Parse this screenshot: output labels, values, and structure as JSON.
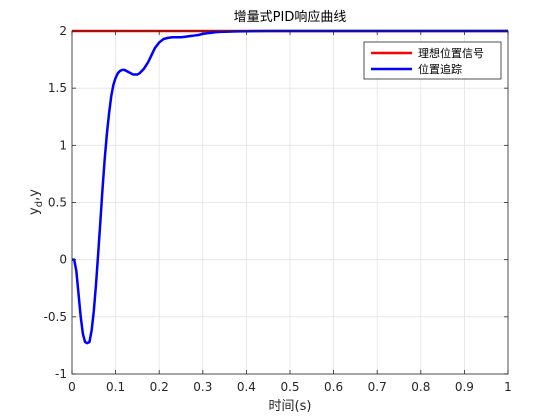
{
  "chart_data": {
    "type": "line",
    "title": "增量式PID响应曲线",
    "xlabel": "时间(s)",
    "ylabel_main": "y",
    "ylabel_sub": "d",
    "ylabel_tail": ",y",
    "xlim": [
      0,
      1
    ],
    "ylim": [
      -1,
      2
    ],
    "xticks": [
      0,
      0.1,
      0.2,
      0.3,
      0.4,
      0.5,
      0.6,
      0.7,
      0.8,
      0.9,
      1
    ],
    "xtick_labels": [
      "0",
      "0.1",
      "0.2",
      "0.3",
      "0.4",
      "0.5",
      "0.6",
      "0.7",
      "0.8",
      "0.9",
      "1"
    ],
    "yticks": [
      -1,
      -0.5,
      0,
      0.5,
      1,
      1.5,
      2
    ],
    "ytick_labels": [
      "-1",
      "-0.5",
      "0",
      "0.5",
      "1",
      "1.5",
      "2"
    ],
    "grid": true,
    "legend_position": "top-right",
    "series": [
      {
        "name": "理想位置信号",
        "color": "#ff0000",
        "x": [
          0,
          1
        ],
        "y": [
          2,
          2
        ]
      },
      {
        "name": "位置追踪",
        "color": "#0000ff",
        "x": [
          0,
          0.005,
          0.01,
          0.015,
          0.02,
          0.025,
          0.03,
          0.035,
          0.04,
          0.045,
          0.05,
          0.055,
          0.06,
          0.065,
          0.07,
          0.075,
          0.08,
          0.085,
          0.09,
          0.095,
          0.1,
          0.105,
          0.11,
          0.115,
          0.12,
          0.125,
          0.13,
          0.135,
          0.14,
          0.145,
          0.15,
          0.155,
          0.16,
          0.165,
          0.17,
          0.175,
          0.18,
          0.185,
          0.19,
          0.2,
          0.21,
          0.22,
          0.23,
          0.24,
          0.25,
          0.26,
          0.27,
          0.28,
          0.29,
          0.3,
          0.31,
          0.32,
          0.33,
          0.34,
          0.35,
          0.36,
          0.38,
          0.4,
          0.42,
          0.45,
          0.5,
          0.55,
          0.6,
          0.7,
          0.8,
          0.9,
          1
        ],
        "y": [
          0,
          0,
          -0.1,
          -0.3,
          -0.5,
          -0.65,
          -0.72,
          -0.73,
          -0.72,
          -0.62,
          -0.45,
          -0.22,
          0.05,
          0.33,
          0.62,
          0.88,
          1.1,
          1.28,
          1.43,
          1.53,
          1.59,
          1.63,
          1.65,
          1.66,
          1.66,
          1.65,
          1.64,
          1.63,
          1.62,
          1.62,
          1.62,
          1.63,
          1.65,
          1.67,
          1.7,
          1.73,
          1.77,
          1.81,
          1.85,
          1.9,
          1.93,
          1.94,
          1.945,
          1.945,
          1.945,
          1.95,
          1.955,
          1.96,
          1.965,
          1.975,
          1.98,
          1.985,
          1.99,
          1.992,
          1.993,
          1.995,
          1.997,
          1.998,
          1.999,
          2,
          2,
          2,
          2,
          2,
          2,
          2,
          2
        ]
      }
    ]
  }
}
